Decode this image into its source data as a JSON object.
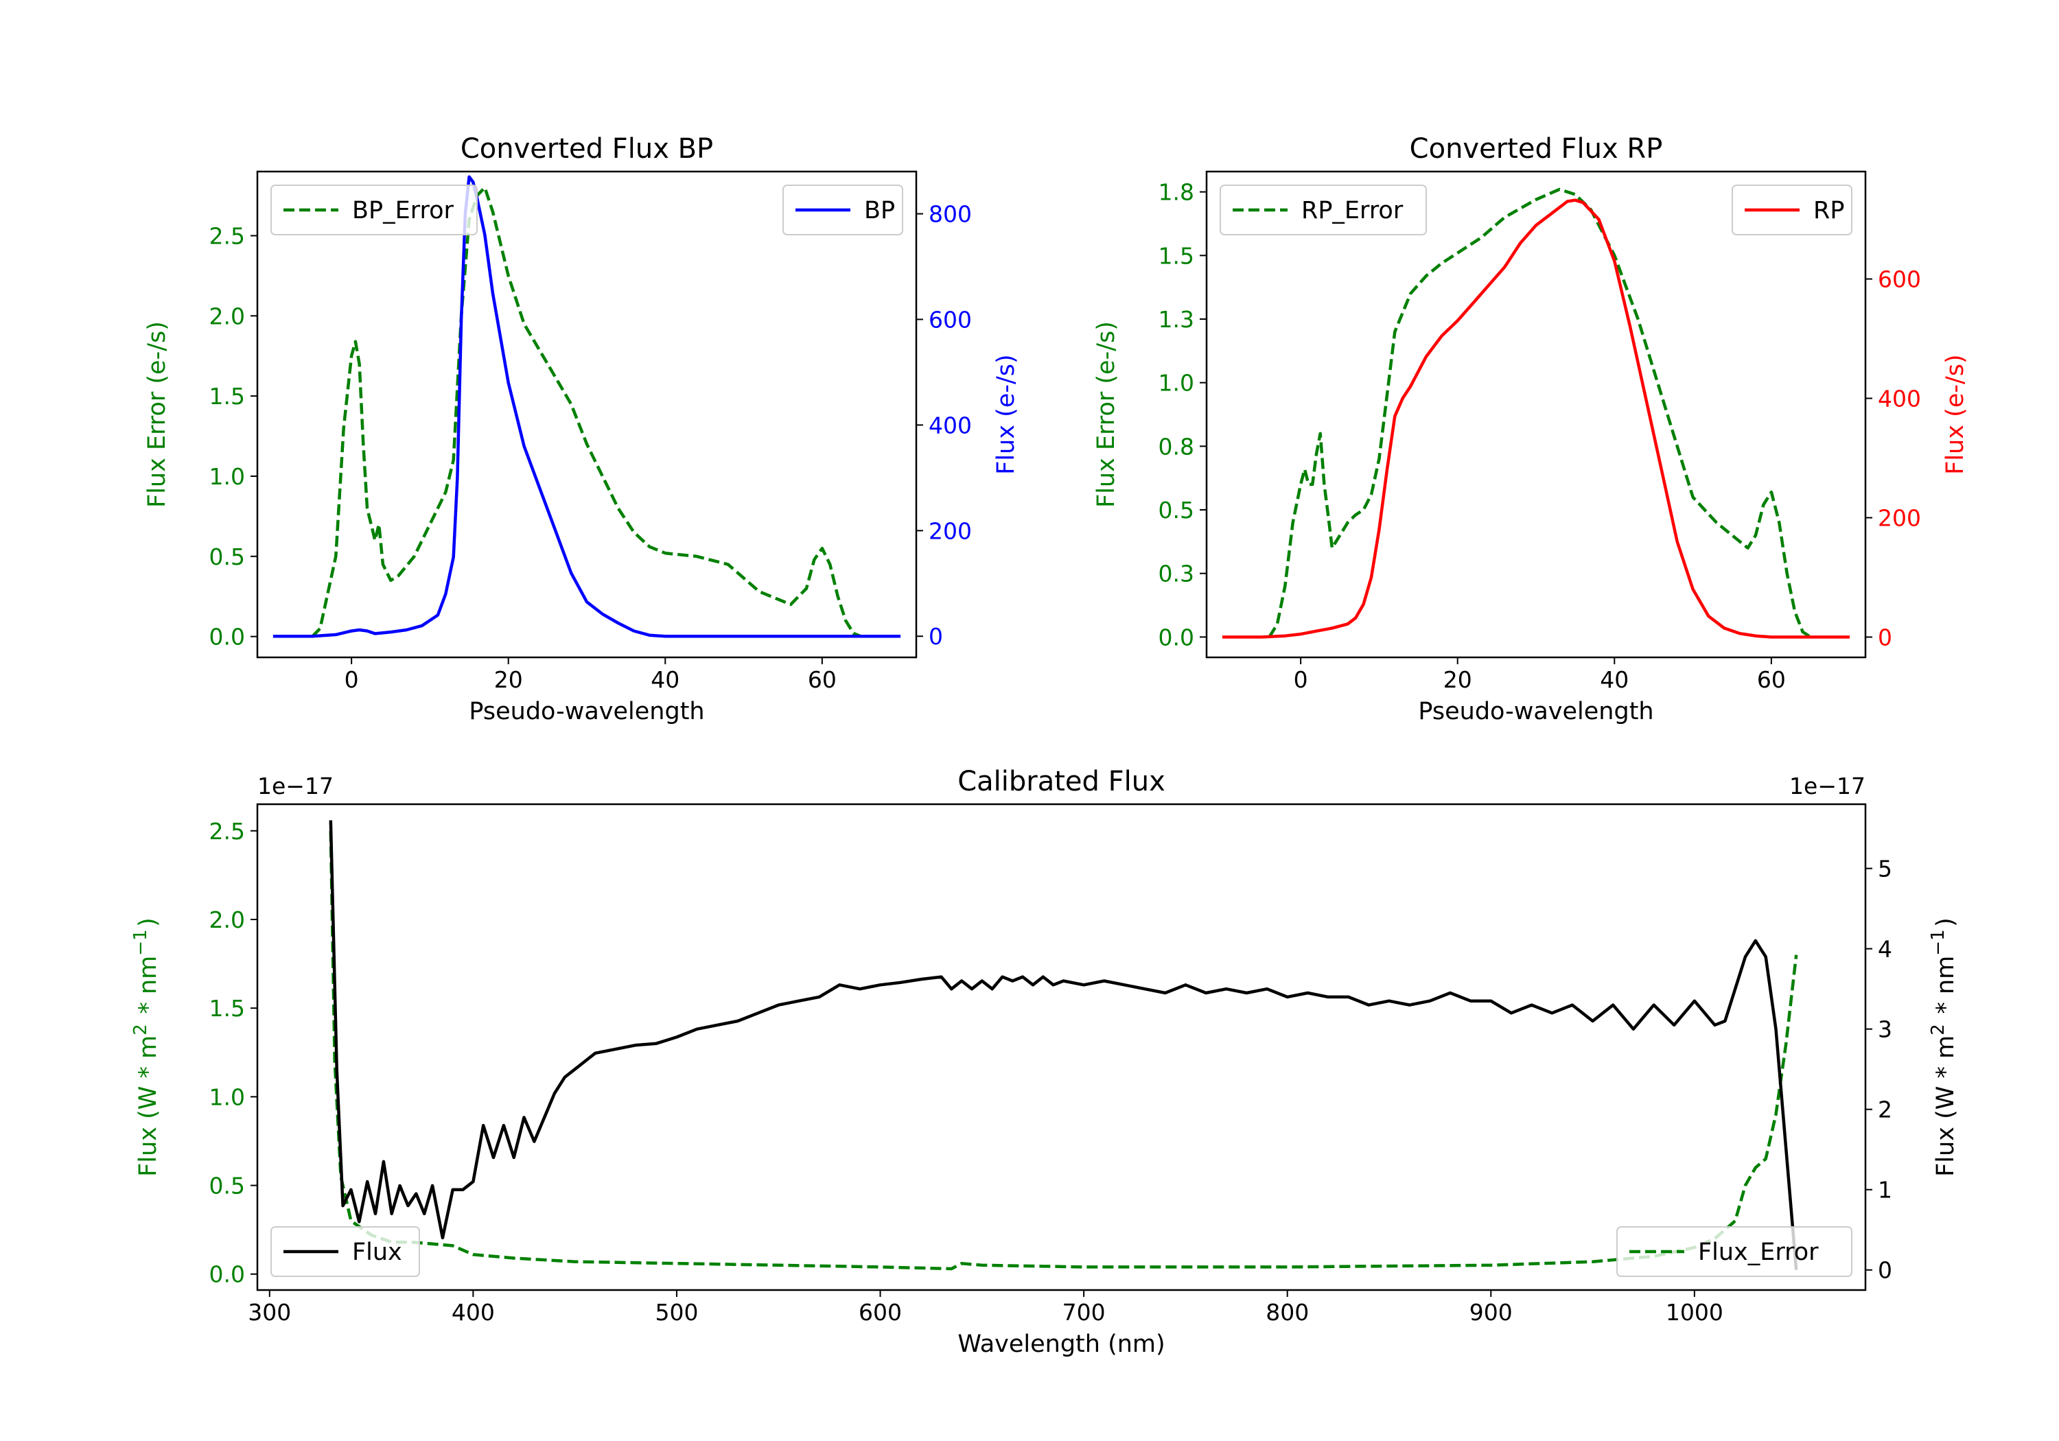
{
  "chart_data": [
    {
      "type": "line",
      "title": "Converted Flux BP",
      "xlabel": "Pseudo-wavelength",
      "ylabel_left": "Flux Error (e-/s)",
      "ylabel_right": "Flux (e-/s)",
      "xlim": [
        -12,
        72
      ],
      "ylim_left": [
        -0.13,
        2.9
      ],
      "ylim_right": [
        -40,
        880
      ],
      "xticks": [
        0,
        20,
        40,
        60
      ],
      "yticks_left": [
        0.0,
        0.5,
        1.0,
        1.5,
        2.0,
        2.5
      ],
      "yticks_right": [
        0,
        200,
        400,
        600,
        800
      ],
      "colors": {
        "left_axis": "#008000",
        "right_axis": "#0000ff"
      },
      "series": [
        {
          "name": "BP_Error",
          "axis": "left",
          "style": "dashed",
          "color": "#008000",
          "x": [
            -5,
            -4,
            -2,
            -1,
            0,
            0.5,
            1,
            1.5,
            2,
            3,
            3.5,
            4,
            5,
            6,
            8,
            10,
            12,
            13,
            14,
            15,
            16,
            17,
            18,
            20,
            22,
            25,
            28,
            30,
            32,
            34,
            36,
            38,
            40,
            44,
            48,
            52,
            56,
            58,
            59,
            60,
            61,
            62,
            63,
            64,
            65
          ],
          "y": [
            0.0,
            0.05,
            0.5,
            1.3,
            1.75,
            1.84,
            1.7,
            1.2,
            0.8,
            0.6,
            0.7,
            0.45,
            0.35,
            0.38,
            0.5,
            0.7,
            0.9,
            1.1,
            2.0,
            2.6,
            2.75,
            2.8,
            2.65,
            2.25,
            1.95,
            1.7,
            1.45,
            1.2,
            1.0,
            0.8,
            0.65,
            0.56,
            0.52,
            0.5,
            0.45,
            0.28,
            0.2,
            0.3,
            0.48,
            0.55,
            0.45,
            0.25,
            0.1,
            0.02,
            0.0
          ]
        },
        {
          "name": "BP",
          "axis": "right",
          "style": "solid",
          "color": "#0000ff",
          "x": [
            -10,
            -5,
            -2,
            0,
            1,
            2,
            3,
            5,
            7,
            9,
            11,
            12,
            13,
            13.5,
            14,
            14.5,
            15,
            15.5,
            16,
            17,
            18,
            20,
            22,
            24,
            26,
            28,
            30,
            32,
            34,
            36,
            38,
            40,
            44,
            48,
            52,
            56,
            60,
            64,
            68,
            70
          ],
          "y": [
            0,
            0,
            3,
            10,
            12,
            10,
            5,
            8,
            12,
            20,
            40,
            80,
            150,
            300,
            600,
            800,
            870,
            860,
            830,
            760,
            650,
            480,
            360,
            280,
            200,
            120,
            65,
            42,
            25,
            10,
            2,
            0,
            0,
            0,
            0,
            0,
            0,
            0,
            0,
            0
          ]
        }
      ],
      "legends": [
        {
          "label": "BP_Error",
          "position": "upper-left"
        },
        {
          "label": "BP",
          "position": "upper-right"
        }
      ]
    },
    {
      "type": "line",
      "title": "Converted Flux RP",
      "xlabel": "Pseudo-wavelength",
      "ylabel_left": "Flux Error (e-/s)",
      "ylabel_right": "Flux (e-/s)",
      "xlim": [
        -12,
        72
      ],
      "ylim_left": [
        -0.08,
        1.83
      ],
      "ylim_right": [
        -34,
        780
      ],
      "xticks": [
        0,
        20,
        40,
        60
      ],
      "yticks_left": [
        0.0,
        0.25,
        0.5,
        0.75,
        1.0,
        1.25,
        1.5,
        1.75
      ],
      "yticks_right": [
        0,
        200,
        400,
        600
      ],
      "colors": {
        "left_axis": "#008000",
        "right_axis": "#ff0000"
      },
      "series": [
        {
          "name": "RP_Error",
          "axis": "left",
          "style": "dashed",
          "color": "#008000",
          "x": [
            -4,
            -3,
            -2,
            -1,
            0,
            0.5,
            1,
            1.5,
            2,
            2.5,
            3,
            3.5,
            4,
            5,
            6,
            7,
            8,
            9,
            10,
            11,
            12,
            14,
            16,
            18,
            20,
            23,
            26,
            30,
            33,
            35,
            37,
            40,
            43,
            46,
            50,
            53,
            55,
            57,
            58,
            59,
            60,
            61,
            62,
            63,
            64,
            65
          ],
          "y": [
            0.0,
            0.05,
            0.2,
            0.45,
            0.6,
            0.66,
            0.6,
            0.6,
            0.72,
            0.8,
            0.6,
            0.48,
            0.35,
            0.4,
            0.45,
            0.48,
            0.5,
            0.56,
            0.7,
            0.95,
            1.2,
            1.35,
            1.42,
            1.47,
            1.51,
            1.57,
            1.65,
            1.72,
            1.76,
            1.74,
            1.68,
            1.5,
            1.25,
            0.95,
            0.55,
            0.45,
            0.4,
            0.35,
            0.4,
            0.52,
            0.57,
            0.45,
            0.25,
            0.1,
            0.02,
            0.0
          ]
        },
        {
          "name": "RP",
          "axis": "right",
          "style": "solid",
          "color": "#ff0000",
          "x": [
            -10,
            -5,
            -2,
            0,
            2,
            4,
            6,
            7,
            8,
            9,
            10,
            11,
            12,
            13,
            14,
            16,
            18,
            20,
            22,
            24,
            26,
            28,
            30,
            32,
            34,
            35,
            36,
            38,
            40,
            42,
            44,
            46,
            48,
            50,
            52,
            54,
            56,
            58,
            60,
            64,
            68,
            70
          ],
          "y": [
            0,
            0,
            2,
            5,
            10,
            15,
            22,
            32,
            55,
            100,
            180,
            280,
            370,
            400,
            420,
            470,
            505,
            530,
            560,
            590,
            620,
            660,
            690,
            710,
            730,
            732,
            728,
            700,
            630,
            520,
            400,
            280,
            160,
            80,
            35,
            15,
            6,
            2,
            0,
            0,
            0,
            0
          ]
        }
      ],
      "legends": [
        {
          "label": "RP_Error",
          "position": "upper-left"
        },
        {
          "label": "RP",
          "position": "upper-right"
        }
      ]
    },
    {
      "type": "line",
      "title": "Calibrated Flux",
      "xlabel": "Wavelength (nm)",
      "ylabel_left": "Flux (W * m$^2$ * nm$^{-1}$)",
      "ylabel_right": "Flux (W * m$^2$ * nm$^{-1}$)",
      "offset_left": "1e−17",
      "offset_right": "1e−17",
      "xlim": [
        294,
        1084
      ],
      "ylim_left": [
        -0.09,
        2.65
      ],
      "ylim_right": [
        -0.25,
        5.8
      ],
      "xticks": [
        300,
        400,
        500,
        600,
        700,
        800,
        900,
        1000
      ],
      "yticks_left": [
        0.0,
        0.5,
        1.0,
        1.5,
        2.0,
        2.5
      ],
      "yticks_right": [
        0,
        1,
        2,
        3,
        4,
        5
      ],
      "colors": {
        "left_axis": "#008000",
        "right_axis": "#000000"
      },
      "series": [
        {
          "name": "Flux_Error",
          "axis": "left",
          "style": "dashed",
          "color": "#008000",
          "x": [
            330,
            332,
            335,
            340,
            350,
            360,
            370,
            380,
            390,
            400,
            420,
            450,
            500,
            550,
            600,
            635,
            640,
            650,
            700,
            800,
            900,
            950,
            980,
            1000,
            1010,
            1020,
            1025,
            1030,
            1035,
            1040,
            1045,
            1050
          ],
          "y": [
            2.5,
            1.2,
            0.55,
            0.3,
            0.22,
            0.18,
            0.18,
            0.17,
            0.16,
            0.11,
            0.09,
            0.07,
            0.06,
            0.05,
            0.04,
            0.03,
            0.06,
            0.05,
            0.04,
            0.04,
            0.05,
            0.07,
            0.1,
            0.15,
            0.2,
            0.3,
            0.5,
            0.6,
            0.65,
            0.9,
            1.3,
            1.8
          ]
        },
        {
          "name": "Flux",
          "axis": "right",
          "style": "solid",
          "color": "#000000",
          "x": [
            330,
            333,
            336,
            340,
            344,
            348,
            352,
            356,
            360,
            364,
            368,
            372,
            376,
            380,
            385,
            390,
            395,
            400,
            405,
            410,
            415,
            420,
            425,
            430,
            435,
            440,
            445,
            450,
            455,
            460,
            470,
            480,
            490,
            500,
            510,
            520,
            530,
            540,
            550,
            560,
            570,
            580,
            590,
            600,
            610,
            620,
            630,
            635,
            640,
            645,
            650,
            655,
            660,
            665,
            670,
            675,
            680,
            685,
            690,
            700,
            710,
            720,
            730,
            740,
            750,
            760,
            770,
            780,
            790,
            800,
            810,
            820,
            830,
            840,
            850,
            860,
            870,
            880,
            890,
            900,
            910,
            920,
            930,
            940,
            950,
            960,
            970,
            980,
            990,
            1000,
            1010,
            1015,
            1020,
            1025,
            1030,
            1035,
            1040,
            1050
          ],
          "y": [
            5.6,
            2.5,
            0.8,
            1.0,
            0.6,
            1.1,
            0.7,
            1.35,
            0.7,
            1.05,
            0.8,
            0.95,
            0.7,
            1.05,
            0.4,
            1.0,
            1.0,
            1.1,
            1.8,
            1.4,
            1.8,
            1.4,
            1.9,
            1.6,
            1.9,
            2.2,
            2.4,
            2.5,
            2.6,
            2.7,
            2.75,
            2.8,
            2.82,
            2.9,
            3.0,
            3.05,
            3.1,
            3.2,
            3.3,
            3.35,
            3.4,
            3.55,
            3.5,
            3.55,
            3.58,
            3.62,
            3.65,
            3.5,
            3.6,
            3.5,
            3.6,
            3.5,
            3.65,
            3.6,
            3.65,
            3.55,
            3.65,
            3.55,
            3.6,
            3.55,
            3.6,
            3.55,
            3.5,
            3.45,
            3.55,
            3.45,
            3.5,
            3.45,
            3.5,
            3.4,
            3.45,
            3.4,
            3.4,
            3.3,
            3.35,
            3.3,
            3.35,
            3.45,
            3.35,
            3.35,
            3.2,
            3.3,
            3.2,
            3.3,
            3.1,
            3.3,
            3.0,
            3.3,
            3.05,
            3.35,
            3.05,
            3.1,
            3.5,
            3.9,
            4.1,
            3.9,
            3.0,
            0.0
          ]
        }
      ],
      "legends": [
        {
          "label": "Flux",
          "position": "lower-left"
        },
        {
          "label": "Flux_Error",
          "position": "lower-right"
        }
      ]
    }
  ]
}
